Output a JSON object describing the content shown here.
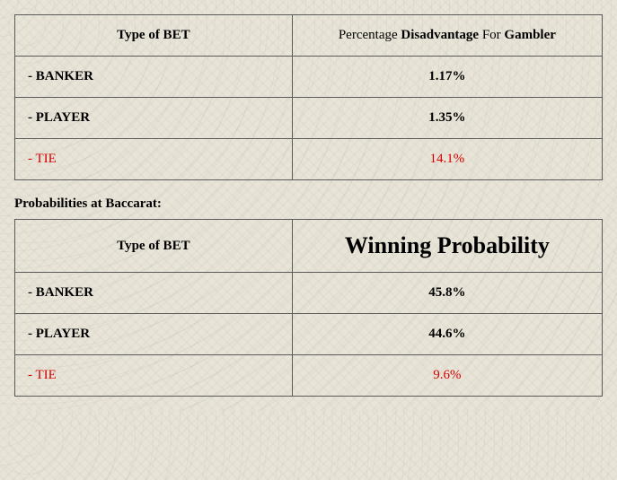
{
  "table1": {
    "header_left": "Type of BET",
    "header_right_parts": {
      "p1": "Percentage ",
      "b1": "Disadvantage",
      "p2": " For ",
      "b2": "Gambler"
    },
    "rows": [
      {
        "label": "- BANKER",
        "value": "1.17%",
        "tie": false
      },
      {
        "label": "- PLAYER",
        "value": "1.35%",
        "tie": false
      },
      {
        "label": "- TIE",
        "value": "14.1%",
        "tie": true
      }
    ],
    "border_color": "#5a5a5a",
    "tie_color": "#d40000"
  },
  "section_title": "Probabilities at Baccarat:",
  "table2": {
    "header_left": "Type of BET",
    "header_right": "Winning Probability",
    "header_right_fontsize": 26,
    "rows": [
      {
        "label": "- BANKER",
        "value": "45.8%",
        "tie": false
      },
      {
        "label": "- PLAYER",
        "value": "44.6%",
        "tie": false
      },
      {
        "label": "- TIE",
        "value": "9.6%",
        "tie": true
      }
    ],
    "border_color": "#5a5a5a",
    "tie_color": "#d40000"
  },
  "background_color": "#e8e4d8",
  "font_family": "Times New Roman"
}
